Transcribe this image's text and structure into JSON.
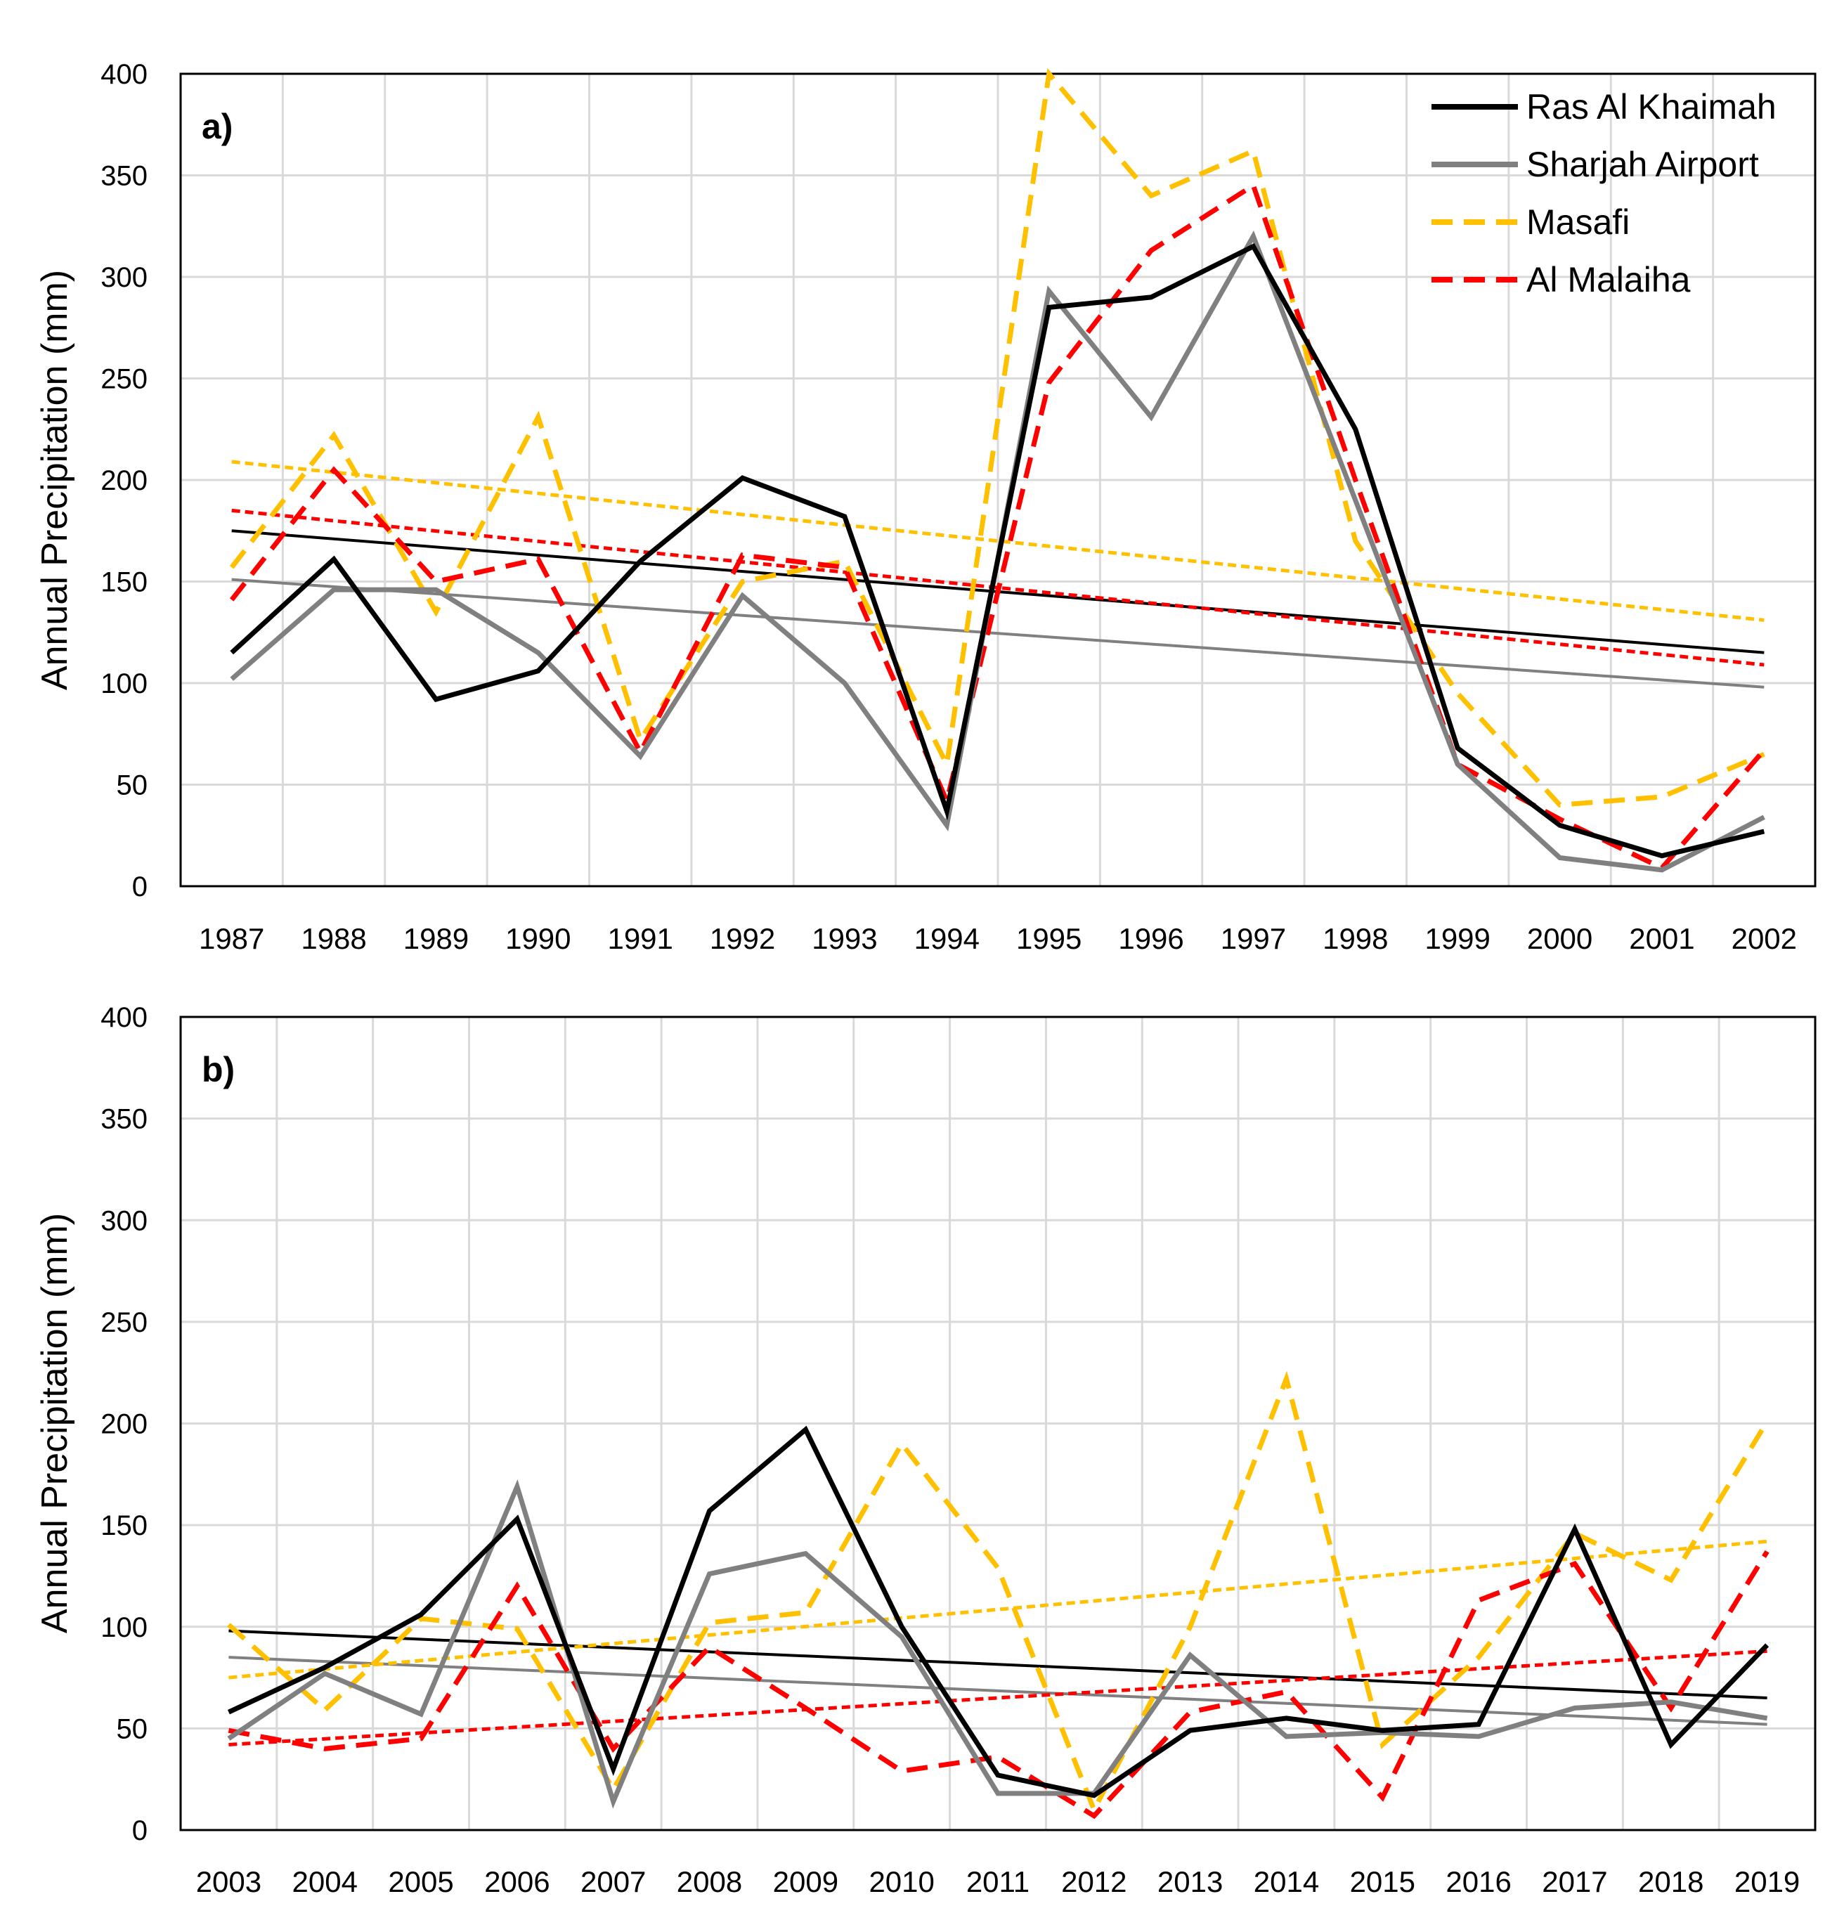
{
  "colors": {
    "ras_al_khaimah": "#000000",
    "sharjah_airport": "#808080",
    "masafi": "#FFC000",
    "al_malaiha": "#FF0000",
    "grid": "#D9D9D9"
  },
  "legend": [
    "Ras Al Khaimah",
    "Sharjah Airport",
    "Masafi",
    "Al Malaiha"
  ],
  "chart_data": [
    {
      "type": "line",
      "panel_label": "a)",
      "ylabel": "Annual Precipitation (mm)",
      "xlabel": "",
      "ylim": [
        0,
        400
      ],
      "yticks": [
        "0",
        "50",
        "100",
        "150",
        "200",
        "250",
        "300",
        "350",
        "400"
      ],
      "legend_position": "top-right",
      "grid": true,
      "categories": [
        "1987",
        "1988",
        "1989",
        "1990",
        "1991",
        "1992",
        "1993",
        "1994",
        "1995",
        "1996",
        "1997",
        "1998",
        "1999",
        "2000",
        "2001",
        "2002"
      ],
      "series": [
        {
          "name": "Ras Al Khaimah",
          "style": "solid",
          "values": [
            115,
            161,
            92,
            106,
            160,
            201,
            182,
            37,
            285,
            290,
            315,
            225,
            68,
            30,
            15,
            27
          ],
          "trend": [
            175,
            115
          ]
        },
        {
          "name": "Sharjah Airport",
          "style": "solid",
          "values": [
            102,
            146,
            146,
            115,
            64,
            143,
            100,
            30,
            293,
            231,
            320,
            190,
            60,
            14,
            8,
            34
          ],
          "trend": [
            151,
            98
          ]
        },
        {
          "name": "Masafi",
          "style": "dashed",
          "values": [
            157,
            222,
            135,
            231,
            72,
            150,
            160,
            60,
            400,
            340,
            362,
            170,
            95,
            40,
            44,
            65
          ],
          "trend": [
            209,
            131
          ]
        },
        {
          "name": "Al Malaiha",
          "style": "dashed",
          "values": [
            141,
            205,
            150,
            161,
            66,
            163,
            157,
            42,
            248,
            313,
            345,
            200,
            60,
            33,
            9,
            67
          ],
          "trend": [
            185,
            109
          ]
        }
      ]
    },
    {
      "type": "line",
      "panel_label": "b)",
      "ylabel": "Annual Precipitation (mm)",
      "xlabel": "",
      "ylim": [
        0,
        400
      ],
      "yticks": [
        "0",
        "50",
        "100",
        "150",
        "200",
        "250",
        "300",
        "350",
        "400"
      ],
      "grid": true,
      "categories": [
        "2003",
        "2004",
        "2005",
        "2006",
        "2007",
        "2008",
        "2009",
        "2010",
        "2011",
        "2012",
        "2013",
        "2014",
        "2015",
        "2016",
        "2017",
        "2018",
        "2019"
      ],
      "series": [
        {
          "name": "Ras Al Khaimah",
          "style": "solid",
          "values": [
            58,
            80,
            106,
            153,
            30,
            157,
            197,
            100,
            27,
            17,
            49,
            55,
            49,
            52,
            148,
            42,
            91
          ],
          "trend": [
            98,
            65
          ]
        },
        {
          "name": "Sharjah Airport",
          "style": "solid",
          "values": [
            45,
            77,
            57,
            169,
            14,
            126,
            136,
            95,
            18,
            18,
            86,
            46,
            48,
            46,
            60,
            63,
            55
          ],
          "trend": [
            85,
            52
          ]
        },
        {
          "name": "Masafi",
          "style": "dashed",
          "values": [
            101,
            59,
            104,
            99,
            20,
            102,
            107,
            190,
            129,
            10,
            100,
            222,
            42,
            85,
            146,
            123,
            201
          ],
          "trend": [
            75,
            142
          ]
        },
        {
          "name": "Al Malaiha",
          "style": "dashed",
          "values": [
            49,
            40,
            45,
            120,
            40,
            90,
            60,
            29,
            36,
            7,
            58,
            68,
            16,
            113,
            131,
            60,
            137
          ],
          "trend": [
            42,
            88
          ]
        }
      ]
    }
  ]
}
